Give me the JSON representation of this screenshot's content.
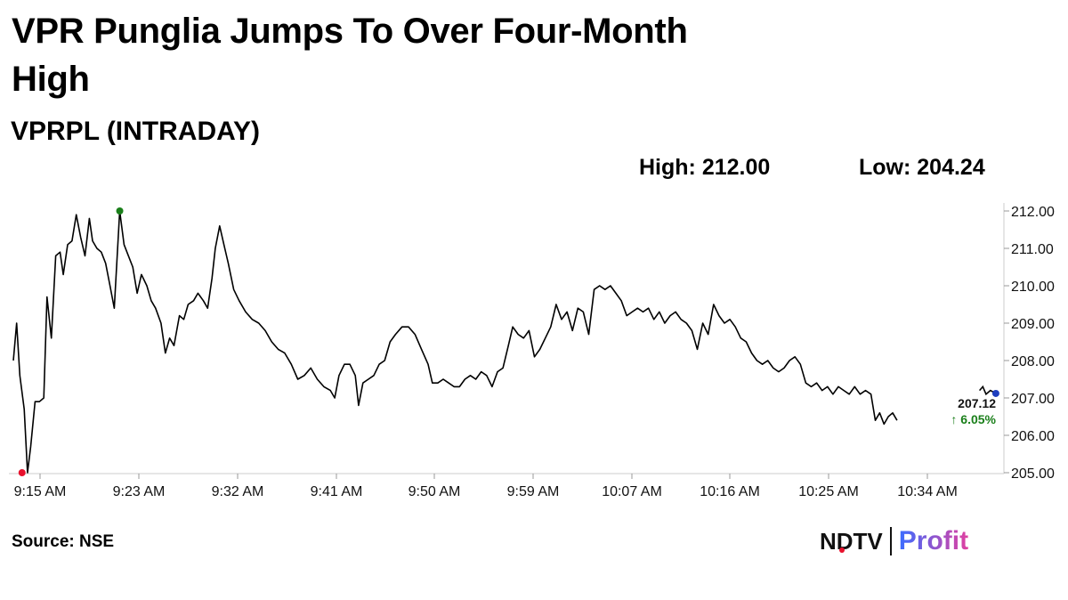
{
  "header": {
    "title": "VPR Punglia Jumps To Over Four-Month High",
    "subtitle": "VPRPL (INTRADAY)",
    "high_label": "High: 212.00",
    "low_label": "Low: 204.24"
  },
  "footer": {
    "source": "Source: NSE",
    "logo_ndtv": "NDTV",
    "logo_profit": "Profit"
  },
  "colors": {
    "line": "#000000",
    "high_marker": "#1a7f1a",
    "low_marker": "#e8112d",
    "last_marker": "#1f3fbf",
    "change_text": "#1a7f1a",
    "profit_gradient_start": "#3b6cff",
    "profit_gradient_end": "#e040a0"
  },
  "chart_data": {
    "type": "line",
    "title": "VPRPL (INTRADAY)",
    "x_ticks": [
      "9:15 AM",
      "9:23 AM",
      "9:32 AM",
      "9:41 AM",
      "9:50 AM",
      "9:59 AM",
      "10:07 AM",
      "10:16 AM",
      "10:25 AM",
      "10:34 AM"
    ],
    "y_ticks": [
      "205.00",
      "206.00",
      "207.00",
      "208.00",
      "209.00",
      "210.00",
      "211.00",
      "212.00"
    ],
    "ylim": [
      205,
      212
    ],
    "xlim": [
      0,
      91
    ],
    "last_value": "207.12",
    "change_label": "↑ 6.05%",
    "high": {
      "x": 9.8,
      "y": 212.0
    },
    "low": {
      "x": 0.8,
      "y": 205.0
    },
    "last": {
      "x": 90.5,
      "y": 207.12
    },
    "series": [
      {
        "points": [
          [
            0,
            208.0
          ],
          [
            0.3,
            209.0
          ],
          [
            0.6,
            207.6
          ],
          [
            1.0,
            206.7
          ],
          [
            1.3,
            205.0
          ],
          [
            1.6,
            205.7
          ],
          [
            2.0,
            206.9
          ],
          [
            2.4,
            206.9
          ],
          [
            2.8,
            207.0
          ],
          [
            3.1,
            209.7
          ],
          [
            3.5,
            208.6
          ],
          [
            3.9,
            210.8
          ],
          [
            4.3,
            210.9
          ],
          [
            4.6,
            210.3
          ],
          [
            5.0,
            211.1
          ],
          [
            5.4,
            211.2
          ],
          [
            5.8,
            211.9
          ],
          [
            6.2,
            211.3
          ],
          [
            6.6,
            210.8
          ],
          [
            7.0,
            211.8
          ],
          [
            7.3,
            211.2
          ],
          [
            7.7,
            211.0
          ],
          [
            8.1,
            210.9
          ],
          [
            8.5,
            210.6
          ],
          [
            8.9,
            210.0
          ],
          [
            9.3,
            209.4
          ],
          [
            9.8,
            212.0
          ],
          [
            10.2,
            211.1
          ],
          [
            10.6,
            210.8
          ],
          [
            11.0,
            210.5
          ],
          [
            11.4,
            209.8
          ],
          [
            11.8,
            210.3
          ],
          [
            12.3,
            210.0
          ],
          [
            12.7,
            209.6
          ],
          [
            13.1,
            209.4
          ],
          [
            13.6,
            209.0
          ],
          [
            14.0,
            208.2
          ],
          [
            14.4,
            208.6
          ],
          [
            14.8,
            208.4
          ],
          [
            15.3,
            209.2
          ],
          [
            15.7,
            209.1
          ],
          [
            16.1,
            209.5
          ],
          [
            16.6,
            209.6
          ],
          [
            17.0,
            209.8
          ],
          [
            17.5,
            209.6
          ],
          [
            17.9,
            209.4
          ],
          [
            18.3,
            210.2
          ],
          [
            18.6,
            211.0
          ],
          [
            19.0,
            211.6
          ],
          [
            19.4,
            211.1
          ],
          [
            19.8,
            210.6
          ],
          [
            20.3,
            209.9
          ],
          [
            20.8,
            209.6
          ],
          [
            21.4,
            209.3
          ],
          [
            22.0,
            209.1
          ],
          [
            22.6,
            209.0
          ],
          [
            23.2,
            208.8
          ],
          [
            23.8,
            208.5
          ],
          [
            24.4,
            208.3
          ],
          [
            25.0,
            208.2
          ],
          [
            25.6,
            207.9
          ],
          [
            26.2,
            207.5
          ],
          [
            26.8,
            207.6
          ],
          [
            27.4,
            207.8
          ],
          [
            28.0,
            207.5
          ],
          [
            28.6,
            207.3
          ],
          [
            29.2,
            207.2
          ],
          [
            29.6,
            207.0
          ],
          [
            30.0,
            207.6
          ],
          [
            30.5,
            207.9
          ],
          [
            31.0,
            207.9
          ],
          [
            31.5,
            207.6
          ],
          [
            31.8,
            206.8
          ],
          [
            32.2,
            207.4
          ],
          [
            32.7,
            207.5
          ],
          [
            33.2,
            207.6
          ],
          [
            33.7,
            207.9
          ],
          [
            34.2,
            208.0
          ],
          [
            34.7,
            208.5
          ],
          [
            35.2,
            208.7
          ],
          [
            35.8,
            208.9
          ],
          [
            36.4,
            208.9
          ],
          [
            37.0,
            208.7
          ],
          [
            37.6,
            208.3
          ],
          [
            38.2,
            207.9
          ],
          [
            38.6,
            207.4
          ],
          [
            39.1,
            207.4
          ],
          [
            39.6,
            207.5
          ],
          [
            40.1,
            207.4
          ],
          [
            40.6,
            207.3
          ],
          [
            41.1,
            207.3
          ],
          [
            41.6,
            207.5
          ],
          [
            42.1,
            207.6
          ],
          [
            42.6,
            207.5
          ],
          [
            43.1,
            207.7
          ],
          [
            43.6,
            207.6
          ],
          [
            44.1,
            207.3
          ],
          [
            44.6,
            207.7
          ],
          [
            45.1,
            207.8
          ],
          [
            45.6,
            208.4
          ],
          [
            46.0,
            208.9
          ],
          [
            46.5,
            208.7
          ],
          [
            47.0,
            208.6
          ],
          [
            47.5,
            208.8
          ],
          [
            48.0,
            208.1
          ],
          [
            48.5,
            208.3
          ],
          [
            49.0,
            208.6
          ],
          [
            49.5,
            208.9
          ],
          [
            50.0,
            209.5
          ],
          [
            50.5,
            209.1
          ],
          [
            51.0,
            209.3
          ],
          [
            51.5,
            208.8
          ],
          [
            52.0,
            209.4
          ],
          [
            52.5,
            209.3
          ],
          [
            53.0,
            208.7
          ],
          [
            53.5,
            209.9
          ],
          [
            54.0,
            210.0
          ],
          [
            54.5,
            209.9
          ],
          [
            55.0,
            210.0
          ],
          [
            55.5,
            209.8
          ],
          [
            56.0,
            209.6
          ],
          [
            56.5,
            209.2
          ],
          [
            57.0,
            209.3
          ],
          [
            57.5,
            209.4
          ],
          [
            58.0,
            209.3
          ],
          [
            58.5,
            209.4
          ],
          [
            59.0,
            209.1
          ],
          [
            59.5,
            209.3
          ],
          [
            60.0,
            209.0
          ],
          [
            60.5,
            209.2
          ],
          [
            61.0,
            209.3
          ],
          [
            61.5,
            209.1
          ],
          [
            62.0,
            209.0
          ],
          [
            62.5,
            208.8
          ],
          [
            63.0,
            208.3
          ],
          [
            63.5,
            209.0
          ],
          [
            64.0,
            208.7
          ],
          [
            64.5,
            209.5
          ],
          [
            65.0,
            209.2
          ],
          [
            65.5,
            209.0
          ],
          [
            66.0,
            209.1
          ],
          [
            66.5,
            208.9
          ],
          [
            67.0,
            208.6
          ],
          [
            67.5,
            208.5
          ],
          [
            68.0,
            208.2
          ],
          [
            68.5,
            208.0
          ],
          [
            69.0,
            207.9
          ],
          [
            69.5,
            208.0
          ],
          [
            70.0,
            207.8
          ],
          [
            70.5,
            207.7
          ],
          [
            71.0,
            207.8
          ],
          [
            71.5,
            208.0
          ],
          [
            72.0,
            208.1
          ],
          [
            72.5,
            207.9
          ],
          [
            73.0,
            207.4
          ],
          [
            73.5,
            207.3
          ],
          [
            74.0,
            207.4
          ],
          [
            74.5,
            207.2
          ],
          [
            75.0,
            207.3
          ],
          [
            75.5,
            207.1
          ],
          [
            76.0,
            207.3
          ],
          [
            76.5,
            207.2
          ],
          [
            77.0,
            207.1
          ],
          [
            77.5,
            207.3
          ],
          [
            78.0,
            207.1
          ],
          [
            78.5,
            207.2
          ],
          [
            79.0,
            207.1
          ],
          [
            79.4,
            206.4
          ],
          [
            79.8,
            206.6
          ],
          [
            80.2,
            206.3
          ],
          [
            80.6,
            206.5
          ],
          [
            81.0,
            206.6
          ],
          [
            81.4,
            206.4
          ]
        ]
      }
    ],
    "tail_points": [
      [
        89.0,
        207.2
      ],
      [
        89.3,
        207.3
      ],
      [
        89.6,
        207.1
      ],
      [
        90.0,
        207.2
      ],
      [
        90.5,
        207.12
      ]
    ]
  }
}
